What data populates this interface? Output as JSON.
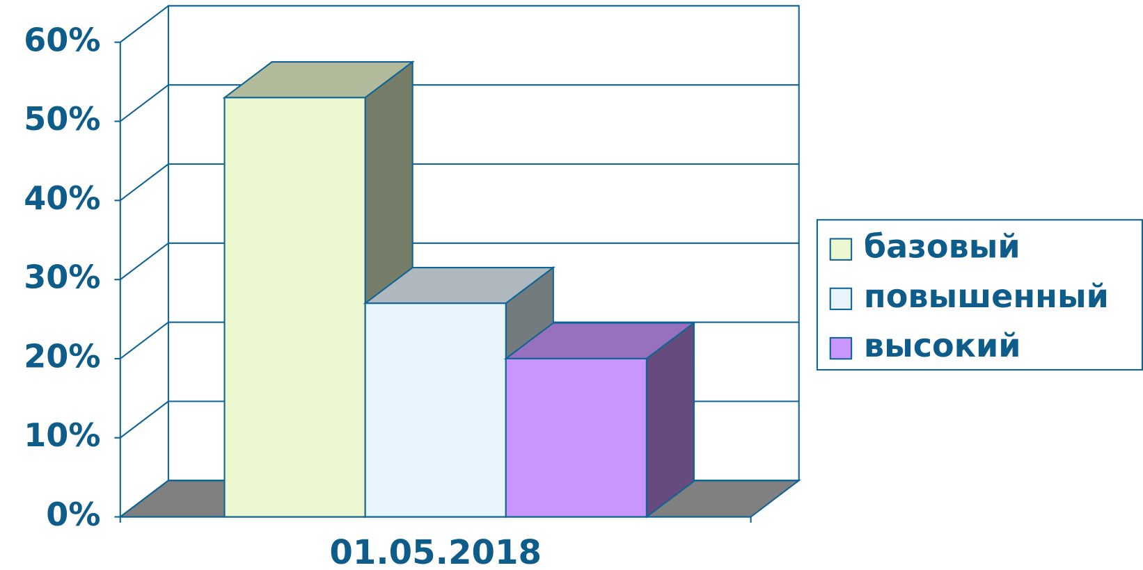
{
  "chart_data": {
    "type": "bar3d",
    "categories": [
      "01.05.2018"
    ],
    "series": [
      {
        "name": "базовый",
        "color": "#ecf9d0",
        "values": [
          53
        ]
      },
      {
        "name": "повышенный",
        "color": "#e8f5fd",
        "values": [
          27
        ]
      },
      {
        "name": "высокий",
        "color": "#c996fc",
        "values": [
          20
        ]
      }
    ],
    "ylim": [
      0,
      60
    ],
    "yticks": [
      {
        "value": 0,
        "label": "0%"
      },
      {
        "value": 10,
        "label": "10%"
      },
      {
        "value": 20,
        "label": "20%"
      },
      {
        "value": 30,
        "label": "30%"
      },
      {
        "value": 40,
        "label": "40%"
      },
      {
        "value": 50,
        "label": "50%"
      },
      {
        "value": 60,
        "label": "60%"
      }
    ],
    "grid": true,
    "legend": "right"
  }
}
